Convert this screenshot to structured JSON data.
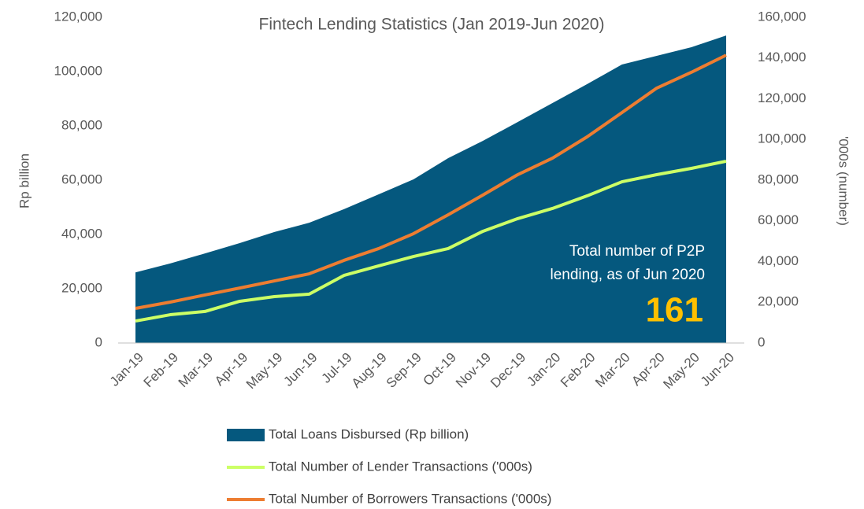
{
  "chart_data": {
    "type": "area",
    "title": "Fintech Lending Statistics (Jan 2019-Jun 2020)",
    "ylabel": "Rp billion",
    "y2label": "'000s (number)",
    "categories": [
      "Jan-19",
      "Feb-19",
      "Mar-19",
      "Apr-19",
      "May-19",
      "Jun-19",
      "Jul-19",
      "Aug-19",
      "Sep-19",
      "Oct-19",
      "Nov-19",
      "Dec-19",
      "Jan-20",
      "Feb-20",
      "Mar-20",
      "Apr-20",
      "May-20",
      "Jun-20"
    ],
    "series": [
      {
        "name": "Total Loans Disbursed (Rp billion)",
        "type": "area",
        "color": "#05587e",
        "axis": "y",
        "values": [
          26000,
          29300,
          33000,
          36800,
          40900,
          44300,
          49300,
          54800,
          60300,
          68100,
          74500,
          81400,
          88400,
          95400,
          102600,
          105800,
          109000,
          113300
        ]
      },
      {
        "name": "Total Number of Lender Transactions ('000s)",
        "type": "line",
        "color": "#ccff66",
        "axis": "y2",
        "values": [
          10800,
          13900,
          15500,
          20500,
          22800,
          24000,
          33200,
          37900,
          42500,
          46400,
          54900,
          61100,
          66100,
          72300,
          79200,
          82700,
          85800,
          89300
        ]
      },
      {
        "name": "Total Number of Borrowers Transactions ('000s)",
        "type": "line",
        "color": "#ed7d31",
        "axis": "y2",
        "values": [
          17000,
          20100,
          23600,
          27000,
          30500,
          34000,
          40600,
          46400,
          53700,
          63000,
          72700,
          82700,
          90800,
          101300,
          113200,
          125200,
          133000,
          141400
        ]
      }
    ],
    "ylim": [
      0,
      120000
    ],
    "yticks": [
      0,
      {
        "value": 20000,
        "label": "20,000"
      },
      {
        "value": 40000,
        "label": "40,000"
      },
      {
        "value": 60000,
        "label": "60,000"
      },
      {
        "value": 80000,
        "label": "80,000"
      },
      {
        "value": 100000,
        "label": "100,000"
      },
      {
        "value": 120000,
        "label": "120,000"
      }
    ],
    "y2lim": [
      0,
      160000
    ],
    "y2ticks": [
      0,
      {
        "value": 20000,
        "label": "20,000"
      },
      {
        "value": 40000,
        "label": "40,000"
      },
      {
        "value": 60000,
        "label": "60,000"
      },
      {
        "value": 80000,
        "label": "80,000"
      },
      {
        "value": 100000,
        "label": "100,000"
      },
      {
        "value": 120000,
        "label": "120,000"
      },
      {
        "value": 140000,
        "label": "140,000"
      },
      {
        "value": 160000,
        "label": "160,000"
      }
    ],
    "annotation": {
      "lines": [
        "Total number of P2P",
        "lending, as of Jun 2020"
      ],
      "value": 161
    },
    "legend": "bottom"
  }
}
